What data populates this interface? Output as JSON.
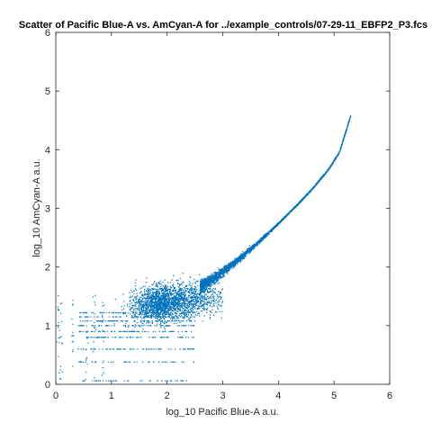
{
  "chart_data": {
    "type": "scatter",
    "title": "Scatter of Pacific Blue-A vs. AmCyan-A for ../example_controls/07-29-11_EBFP2_P3.fcs",
    "xlabel": "log_10 Pacific Blue-A a.u.",
    "ylabel": "log_10 AmCyan-A a.u.",
    "xlim": [
      0,
      6
    ],
    "ylim": [
      0,
      6
    ],
    "xticks": [
      "0",
      "1",
      "2",
      "3",
      "4",
      "5",
      "6"
    ],
    "yticks": [
      "0",
      "1",
      "2",
      "3",
      "4",
      "5",
      "6"
    ],
    "grid": false,
    "legend": "none",
    "marker_color": "#0072BD",
    "series": [
      {
        "trend": {
          "x": [
            2.0,
            2.5,
            2.8,
            3.0,
            3.2,
            3.5,
            3.8,
            4.0,
            4.3,
            4.6,
            4.9,
            5.1,
            5.3
          ],
          "y": [
            1.45,
            1.62,
            1.78,
            1.92,
            2.06,
            2.3,
            2.56,
            2.74,
            3.02,
            3.32,
            3.66,
            3.96,
            4.58
          ]
        },
        "cloud": {
          "x_range": [
            0.4,
            2.8
          ],
          "y_center": 1.35,
          "y_spread": 0.5
        },
        "low_levels": [
          0.06,
          0.38,
          0.6,
          0.8,
          0.9,
          1.0,
          1.08,
          1.15,
          1.22
        ]
      }
    ]
  }
}
